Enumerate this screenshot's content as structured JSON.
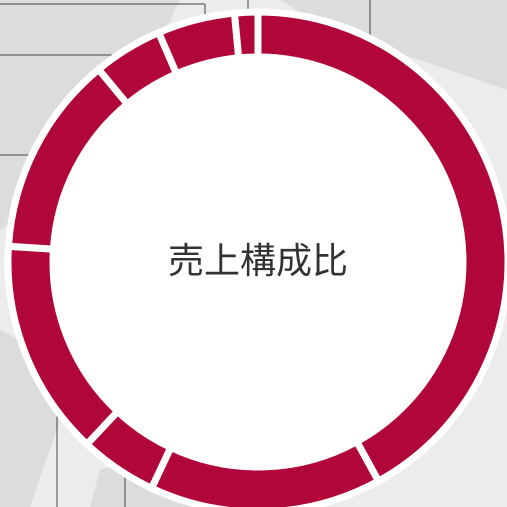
{
  "chart_data": {
    "type": "donut",
    "title": "売上構成比",
    "values": [
      42,
      15,
      5,
      14,
      13,
      4.5,
      5,
      1.5
    ],
    "color": "#b0063a"
  }
}
